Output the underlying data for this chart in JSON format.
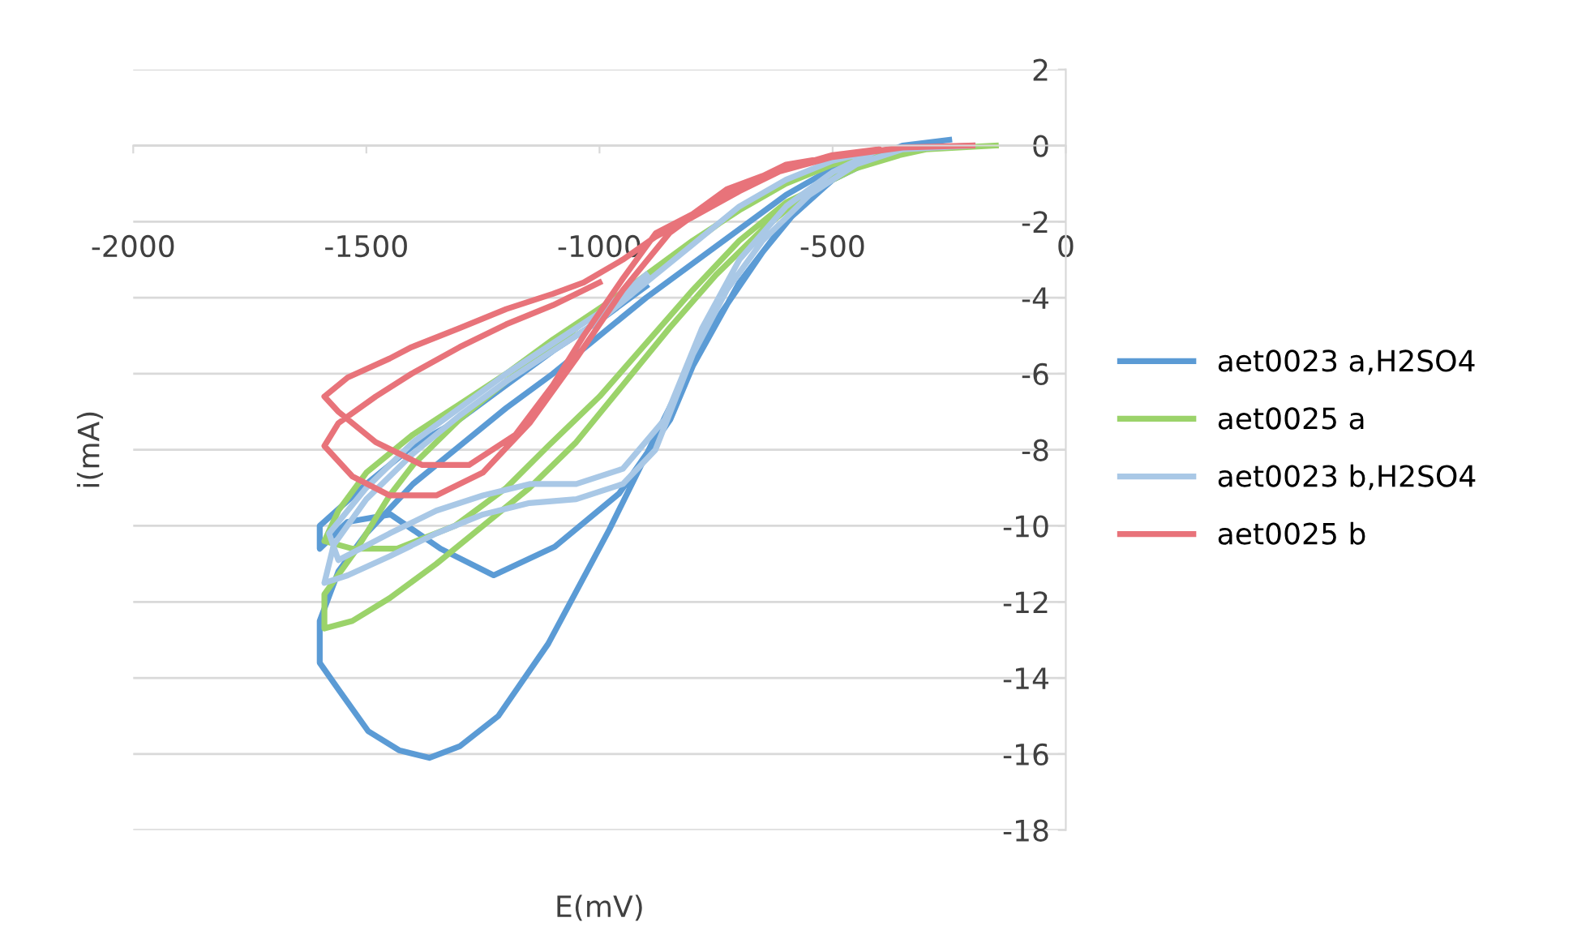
{
  "chart_data": {
    "type": "line",
    "xlabel": "E(mV)",
    "ylabel": "i(mA)",
    "xlim": [
      -2000,
      0
    ],
    "xticks": [
      -2000,
      -1500,
      -1000,
      -500,
      0
    ],
    "ylim": [
      -18,
      2
    ],
    "yticks": [
      2,
      0,
      -2,
      -4,
      -6,
      -8,
      -10,
      -12,
      -14,
      -16,
      -18
    ],
    "grid": "y",
    "legend": "right",
    "marker": "none",
    "line_style": "solid",
    "series": [
      {
        "name": "aet0023 a,H2SO4",
        "color": "#5b9bd5",
        "x": [
          -250,
          -350,
          -450,
          -550,
          -650,
          -750,
          -848,
          -979,
          -1110,
          -1217,
          -1300,
          -1365,
          -1430,
          -1496,
          -1560,
          -1600,
          -1600,
          -1560,
          -1500,
          -1400,
          -1300,
          -1200,
          -1100,
          -1000,
          -900,
          -800,
          -700,
          -600,
          -500,
          -400,
          -300,
          -400,
          -500,
          -600,
          -700,
          -800,
          -848,
          -958,
          -1096,
          -1227,
          -1341,
          -1448,
          -1541,
          -1600,
          -1600,
          -1500,
          -1400,
          -1300,
          -1200,
          -1100,
          -1000,
          -900
        ],
        "values": [
          0.15,
          0.0,
          -0.5,
          -1.3,
          -2.8,
          -4.6,
          -6.85,
          -10.1,
          -13.1,
          -15.0,
          -15.8,
          -16.1,
          -15.9,
          -15.4,
          -14.3,
          -13.6,
          -12.5,
          -11.2,
          -10.2,
          -8.9,
          -7.9,
          -6.9,
          -6.0,
          -5.0,
          -4.0,
          -3.1,
          -2.2,
          -1.3,
          -0.6,
          -0.15,
          0.05,
          -0.3,
          -0.9,
          -2.0,
          -3.6,
          -5.8,
          -7.2,
          -9.15,
          -10.55,
          -11.3,
          -10.6,
          -9.7,
          -9.9,
          -10.6,
          -10.0,
          -8.9,
          -7.9,
          -7.2,
          -6.3,
          -5.4,
          -4.6,
          -3.7
        ]
      },
      {
        "name": "aet0025 a",
        "color": "#9bd36a",
        "x": [
          -150,
          -300,
          -450,
          -550,
          -650,
          -750,
          -850,
          -950,
          -1050,
          -1150,
          -1250,
          -1350,
          -1450,
          -1530,
          -1590,
          -1590,
          -1520,
          -1450,
          -1400,
          -1300,
          -1200,
          -1100,
          -1000,
          -900,
          -800,
          -700,
          -600,
          -500,
          -400,
          -300,
          -450,
          -600,
          -700,
          -800,
          -900,
          -1000,
          -1110,
          -1200,
          -1310,
          -1434,
          -1530,
          -1590,
          -1560,
          -1500,
          -1400,
          -1300,
          -1200,
          -1100,
          -990,
          -850,
          -727
        ],
        "values": [
          0,
          -0.1,
          -0.5,
          -1.2,
          -2.2,
          -3.4,
          -4.8,
          -6.3,
          -7.8,
          -9.0,
          -10.0,
          -11.0,
          -11.9,
          -12.5,
          -12.7,
          -11.8,
          -10.6,
          -9.2,
          -8.4,
          -7.2,
          -6.2,
          -5.3,
          -4.3,
          -3.4,
          -2.5,
          -1.7,
          -1.0,
          -0.5,
          -0.15,
          -0.05,
          -0.6,
          -1.5,
          -2.5,
          -3.8,
          -5.2,
          -6.6,
          -7.9,
          -9.0,
          -10.0,
          -10.6,
          -10.6,
          -10.4,
          -9.6,
          -8.6,
          -7.6,
          -6.8,
          -6.0,
          -5.1,
          -4.2,
          -3.0,
          -1.9
        ]
      },
      {
        "name": "aet0023 b,H2SO4",
        "color": "#a9c8e6",
        "x": [
          -200,
          -350,
          -450,
          -550,
          -650,
          -727,
          -800,
          -880,
          -950,
          -1050,
          -1150,
          -1250,
          -1350,
          -1450,
          -1540,
          -1590,
          -1570,
          -1500,
          -1400,
          -1300,
          -1200,
          -1100,
          -1000,
          -900,
          -800,
          -700,
          -600,
          -500,
          -400,
          -500,
          -600,
          -700,
          -780,
          -860,
          -950,
          -1050,
          -1150,
          -1250,
          -1350,
          -1450,
          -1560,
          -1580,
          -1500,
          -1400,
          -1300,
          -1200,
          -1100,
          -1000,
          -900
        ],
        "values": [
          0,
          -0.1,
          -0.5,
          -1.3,
          -2.5,
          -3.8,
          -5.5,
          -8.0,
          -8.9,
          -9.3,
          -9.4,
          -9.7,
          -10.2,
          -10.8,
          -11.3,
          -11.5,
          -10.5,
          -9.3,
          -8.1,
          -7.1,
          -6.2,
          -5.4,
          -4.6,
          -3.6,
          -2.6,
          -1.6,
          -0.9,
          -0.4,
          -0.1,
          -0.7,
          -1.6,
          -3.0,
          -4.8,
          -7.2,
          -8.5,
          -8.9,
          -8.9,
          -9.2,
          -9.6,
          -10.2,
          -10.9,
          -10.2,
          -9.0,
          -7.8,
          -6.9,
          -6.0,
          -5.2,
          -4.4,
          -3.4
        ]
      },
      {
        "name": "aet0025 b",
        "color": "#e8737a",
        "x": [
          -200,
          -350,
          -500,
          -650,
          -727,
          -800,
          -879,
          -950,
          -1034,
          -1100,
          -1180,
          -1280,
          -1380,
          -1480,
          -1560,
          -1590,
          -1540,
          -1450,
          -1403,
          -1300,
          -1200,
          -1100,
          -1034,
          -950,
          -880,
          -803,
          -700,
          -600,
          -500,
          -400,
          -600,
          -750,
          -850,
          -950,
          -1050,
          -1150,
          -1250,
          -1350,
          -1450,
          -1530,
          -1590,
          -1560,
          -1480,
          -1403,
          -1300,
          -1200,
          -1100,
          -1000
        ],
        "values": [
          0,
          -0.05,
          -0.3,
          -0.8,
          -1.15,
          -1.8,
          -2.3,
          -3.5,
          -5.0,
          -6.3,
          -7.6,
          -8.4,
          -8.4,
          -7.8,
          -7.0,
          -6.6,
          -6.1,
          -5.6,
          -5.3,
          -4.8,
          -4.3,
          -3.9,
          -3.6,
          -3.0,
          -2.4,
          -1.9,
          -1.2,
          -0.6,
          -0.25,
          -0.1,
          -0.5,
          -1.4,
          -2.3,
          -3.8,
          -5.6,
          -7.3,
          -8.6,
          -9.2,
          -9.2,
          -8.7,
          -7.9,
          -7.3,
          -6.6,
          -6.0,
          -5.3,
          -4.7,
          -4.2,
          -3.6
        ]
      }
    ]
  }
}
